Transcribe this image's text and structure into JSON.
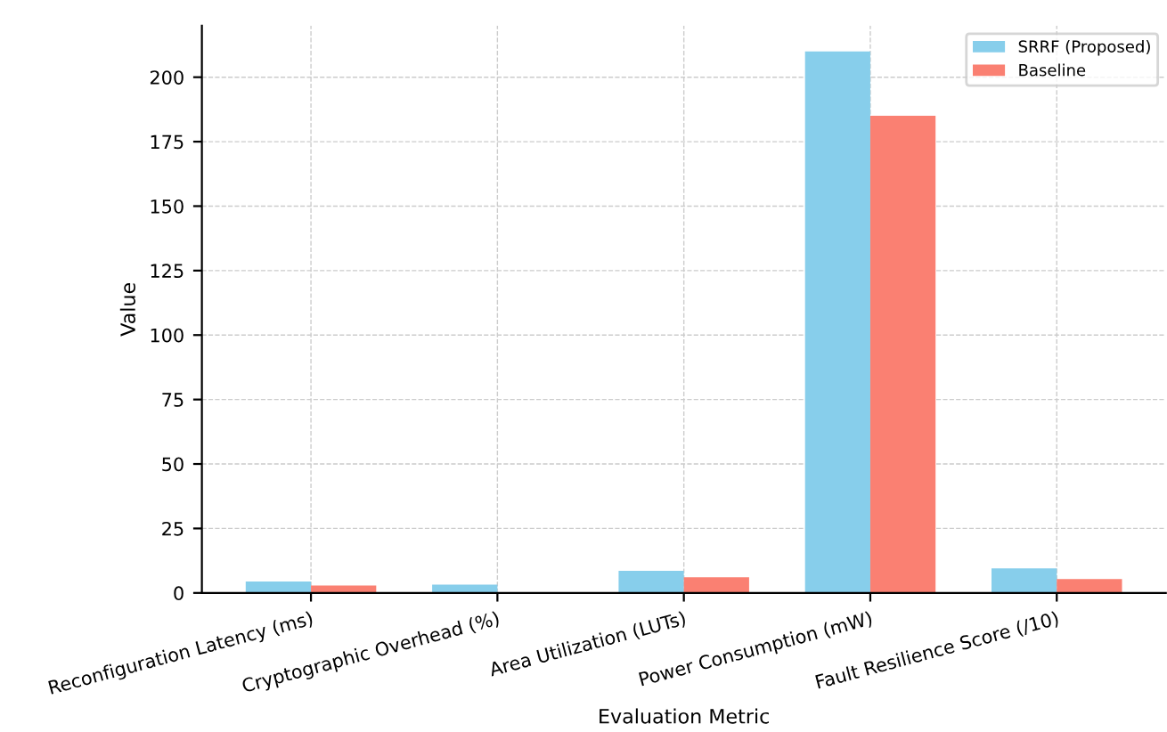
{
  "chart_data": {
    "type": "bar",
    "xlabel": "Evaluation Metric",
    "ylabel": "Value",
    "categories": [
      "Reconfiguration Latency (ms)",
      "Cryptographic Overhead (%)",
      "Area Utilization (LUTs)",
      "Power Consumption (mW)",
      "Fault Resilience Score (/10)"
    ],
    "series": [
      {
        "name": "SRRF (Proposed)",
        "color": "#87ceeb",
        "values": [
          4.4,
          3.2,
          8.6,
          210,
          9.5
        ]
      },
      {
        "name": "Baseline",
        "color": "#fa8072",
        "values": [
          2.9,
          0,
          6.1,
          185,
          5.4
        ]
      }
    ],
    "ylim": [
      0,
      220
    ],
    "yticks": [
      0,
      25,
      50,
      75,
      100,
      125,
      150,
      175,
      200
    ],
    "grid": true,
    "legend": "top right"
  }
}
